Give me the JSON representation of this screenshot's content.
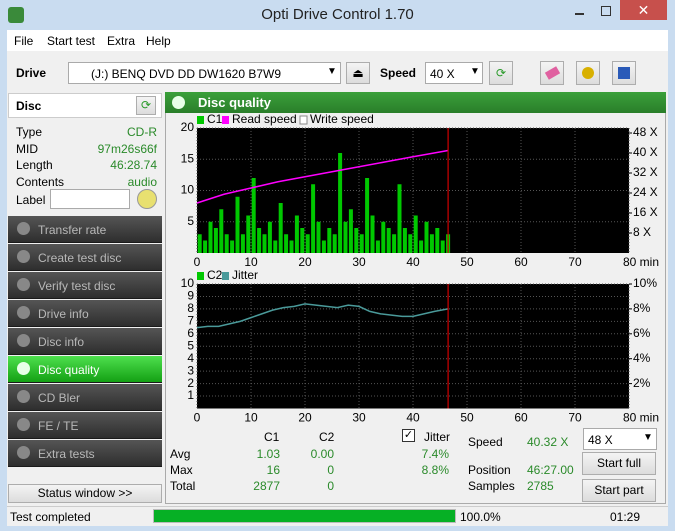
{
  "window": {
    "title": "Opti Drive Control 1.70"
  },
  "menu": [
    "File",
    "Start test",
    "Extra",
    "Help"
  ],
  "toolbar": {
    "drive_label": "Drive",
    "drive": "(J:)  BENQ DVD DD DW1620 B7W9",
    "speed_label": "Speed",
    "speed": "40 X"
  },
  "disc": {
    "header": "Disc",
    "fields": [
      [
        "Type",
        "CD-R"
      ],
      [
        "MID",
        "97m26s66f"
      ],
      [
        "Length",
        "46:28.74"
      ],
      [
        "Contents",
        "audio"
      ]
    ],
    "label": "Label"
  },
  "nav": {
    "items": [
      "Transfer rate",
      "Create test disc",
      "Verify test disc",
      "Drive info",
      "Disc info",
      "Disc quality",
      "CD Bler",
      "FE / TE",
      "Extra tests"
    ],
    "active_index": 5
  },
  "status_window": "Status window >>",
  "panel_title": "Disc quality",
  "charts": [
    {
      "type": "bar",
      "xlim": [
        0,
        80
      ],
      "ylim": [
        0,
        20
      ],
      "y2lim": [
        0,
        50
      ],
      "grid": true,
      "xticks": [
        0,
        10,
        20,
        30,
        40,
        50,
        60,
        70,
        {
          "value": 80,
          "label": "80 min"
        }
      ],
      "yticks": [
        5,
        10,
        15,
        20
      ],
      "y2ticks": [
        {
          "value": 8,
          "label": "8 X"
        },
        {
          "value": 16,
          "label": "16 X"
        },
        {
          "value": 24,
          "label": "24 X"
        },
        {
          "value": 32,
          "label": "32 X"
        },
        {
          "value": 40,
          "label": "40 X"
        },
        {
          "value": 48,
          "label": "48 X"
        }
      ],
      "position_marker": 46.5,
      "series": [
        {
          "name": "C1",
          "color": "#00c800",
          "mark": "bar",
          "x": [
            0.5,
            1.5,
            2.5,
            3.5,
            4.5,
            5.5,
            6.5,
            7.5,
            8.5,
            9.5,
            10.5,
            11.5,
            12.5,
            13.5,
            14.5,
            15.5,
            16.5,
            17.5,
            18.5,
            19.5,
            20.5,
            21.5,
            22.5,
            23.5,
            24.5,
            25.5,
            26.5,
            27.5,
            28.5,
            29.5,
            30.5,
            31.5,
            32.5,
            33.5,
            34.5,
            35.5,
            36.5,
            37.5,
            38.5,
            39.5,
            40.5,
            41.5,
            42.5,
            43.5,
            44.5,
            45.5,
            46.5
          ],
          "values": [
            3,
            2,
            5,
            4,
            7,
            3,
            2,
            9,
            3,
            6,
            12,
            4,
            3,
            5,
            2,
            8,
            3,
            2,
            6,
            4,
            3,
            11,
            5,
            2,
            4,
            3,
            16,
            5,
            7,
            4,
            3,
            12,
            6,
            2,
            5,
            4,
            3,
            11,
            4,
            3,
            6,
            2,
            5,
            3,
            4,
            2,
            3
          ]
        },
        {
          "name": "Read speed",
          "color": "#ff00ff",
          "mark": "line",
          "axis": "y2",
          "x": [
            0,
            5,
            10,
            15,
            20,
            25,
            30,
            35,
            40,
            46.5
          ],
          "values": [
            20,
            23.5,
            26,
            28.5,
            30.5,
            32.5,
            34.5,
            36.5,
            38.5,
            41
          ]
        },
        {
          "name": "Write speed",
          "color": "#ffffff",
          "mark": "line",
          "axis": "y2"
        }
      ]
    },
    {
      "type": "line",
      "xlim": [
        0,
        80
      ],
      "ylim": [
        0,
        10
      ],
      "y2lim": [
        0,
        10
      ],
      "grid": true,
      "xticks": [
        0,
        10,
        20,
        30,
        40,
        50,
        60,
        70,
        {
          "value": 80,
          "label": "80 min"
        }
      ],
      "yticks": [
        1,
        2,
        3,
        4,
        5,
        6,
        7,
        8,
        9,
        10
      ],
      "y2ticks": [
        {
          "value": 2,
          "label": "2%"
        },
        {
          "value": 4,
          "label": "4%"
        },
        {
          "value": 6,
          "label": "6%"
        },
        {
          "value": 8,
          "label": "8%"
        },
        {
          "value": 10,
          "label": "10%"
        }
      ],
      "position_marker": 46.5,
      "series": [
        {
          "name": "C2",
          "color": "#00c800",
          "mark": "bar",
          "x": [
            0,
            2,
            4,
            6,
            8,
            10,
            12,
            14,
            16,
            18,
            20,
            22,
            24,
            26,
            28,
            30,
            32,
            34,
            36,
            38,
            40,
            42,
            44,
            46.5
          ],
          "values": [
            0,
            0,
            0,
            0,
            0,
            0,
            0,
            0,
            0,
            0,
            0,
            0,
            0,
            0,
            0,
            0,
            0,
            0,
            0,
            0,
            0,
            0,
            0,
            0
          ]
        },
        {
          "name": "Jitter",
          "color": "#4a9a9a",
          "mark": "line",
          "axis": "y2",
          "x": [
            0,
            2,
            4,
            6,
            8,
            10,
            12,
            14,
            16,
            18,
            20,
            22,
            24,
            26,
            28,
            30,
            32,
            34,
            36,
            38,
            40,
            42,
            44,
            46.5
          ],
          "values": [
            6.5,
            6.6,
            6.6,
            6.8,
            7.0,
            7.3,
            7.6,
            7.9,
            8.1,
            8.2,
            8.4,
            8.3,
            8.2,
            8.1,
            8.3,
            8.2,
            7.8,
            7.6,
            7.5,
            7.4,
            7.4,
            7.6,
            7.8,
            8.0
          ]
        }
      ]
    }
  ],
  "stats": {
    "columns": [
      "C1",
      "C2",
      "Jitter"
    ],
    "jitter_checked": true,
    "rows": [
      {
        "label": "Avg",
        "values": [
          "1.03",
          "0.00",
          "7.4%"
        ]
      },
      {
        "label": "Max",
        "values": [
          "16",
          "0",
          "8.8%"
        ]
      },
      {
        "label": "Total",
        "values": [
          "2877",
          "0"
        ]
      }
    ]
  },
  "run": {
    "speed_label": "Speed",
    "speed": "40.32 X",
    "speed_select": "48 X",
    "position_label": "Position",
    "position": "46:27.00",
    "samples_label": "Samples",
    "samples": "2785",
    "start_full": "Start full",
    "start_part": "Start part"
  },
  "status_bar": {
    "text": "Test completed",
    "progress": 100.0,
    "progress_label": "100.0%",
    "time": "01:29"
  }
}
